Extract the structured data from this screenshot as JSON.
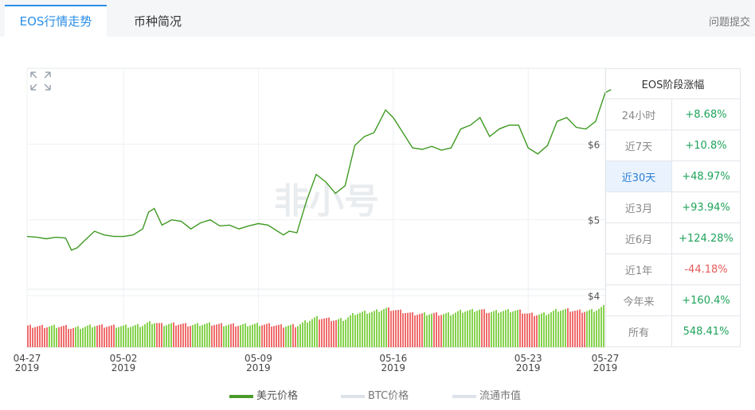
{
  "tabs": [
    {
      "label": "EOS行情走势"
    },
    {
      "label": "币种简况"
    }
  ],
  "feedback_label": "问题提交",
  "watermark": "非小号",
  "stats": {
    "title": "EOS阶段涨幅",
    "rows": [
      {
        "label": "24小时",
        "value": "+8.68%"
      },
      {
        "label": "近7天",
        "value": "+10.8%"
      },
      {
        "label": "近30天",
        "value": "+48.97%"
      },
      {
        "label": "近3月",
        "value": "+93.94%"
      },
      {
        "label": "近6月",
        "value": "+124.28%"
      },
      {
        "label": "近1年",
        "value": "-44.18%"
      },
      {
        "label": "今年来",
        "value": "+160.4%"
      },
      {
        "label": "所有",
        "value": "548.41%"
      }
    ]
  },
  "legend": [
    {
      "label": "美元价格",
      "color": "#4a9a2a"
    },
    {
      "label": "BTC价格",
      "color": "#dde1e8"
    },
    {
      "label": "流通市值",
      "color": "#dde1e8"
    }
  ],
  "colors": {
    "accent": "#2a8ee8",
    "line": "#3f9a23",
    "vol_up": "#86d24e",
    "vol_down": "#f06c6c",
    "positive": "#1ea35a",
    "negative": "#e75a5a"
  },
  "chart_data": {
    "type": "line",
    "x_ticks": [
      {
        "day": 0,
        "label": "04-27",
        "year": "2019"
      },
      {
        "day": 5,
        "label": "05-02",
        "year": "2019"
      },
      {
        "day": 12,
        "label": "05-09",
        "year": "2019"
      },
      {
        "day": 19,
        "label": "05-16",
        "year": "2019"
      },
      {
        "day": 26,
        "label": "05-23",
        "year": "2019"
      },
      {
        "day": 30,
        "label": "05-27",
        "year": "2019"
      }
    ],
    "y_ticks": [
      {
        "value": 4,
        "label": "$4"
      },
      {
        "value": 5,
        "label": "$5"
      },
      {
        "value": 6,
        "label": "$6"
      }
    ],
    "ylim": [
      4,
      7
    ],
    "series": [
      {
        "name": "美元价格",
        "x": [
          0,
          0.5,
          1,
          1.5,
          2,
          2.3,
          2.6,
          3,
          3.5,
          4,
          4.5,
          5,
          5.5,
          6,
          6.3,
          6.6,
          7,
          7.5,
          8,
          8.5,
          9,
          9.5,
          10,
          10.5,
          11,
          11.5,
          12,
          12.5,
          13,
          13.3,
          13.6,
          14,
          14.5,
          15,
          15.5,
          16,
          16.5,
          17,
          17.5,
          18,
          18.3,
          18.6,
          19,
          19.5,
          20,
          20.5,
          21,
          21.5,
          22,
          22.5,
          23,
          23.5,
          24,
          24.5,
          25,
          25.5,
          26,
          26.5,
          27,
          27.5,
          28,
          28.5,
          29,
          29.5,
          30,
          30.3
        ],
        "y": [
          4.78,
          4.77,
          4.75,
          4.77,
          4.76,
          4.6,
          4.63,
          4.73,
          4.85,
          4.8,
          4.78,
          4.78,
          4.8,
          4.88,
          5.1,
          5.15,
          4.93,
          5.0,
          4.98,
          4.88,
          4.96,
          5.0,
          4.92,
          4.93,
          4.88,
          4.92,
          4.95,
          4.93,
          4.85,
          4.8,
          4.85,
          4.83,
          5.25,
          5.6,
          5.5,
          5.35,
          5.45,
          5.98,
          6.1,
          6.15,
          6.3,
          6.45,
          6.35,
          6.15,
          5.95,
          5.93,
          5.97,
          5.92,
          5.95,
          6.2,
          6.25,
          6.35,
          6.1,
          6.2,
          6.25,
          6.25,
          5.95,
          5.87,
          5.98,
          6.3,
          6.35,
          6.22,
          6.2,
          6.3,
          6.68,
          6.72
        ]
      }
    ]
  }
}
